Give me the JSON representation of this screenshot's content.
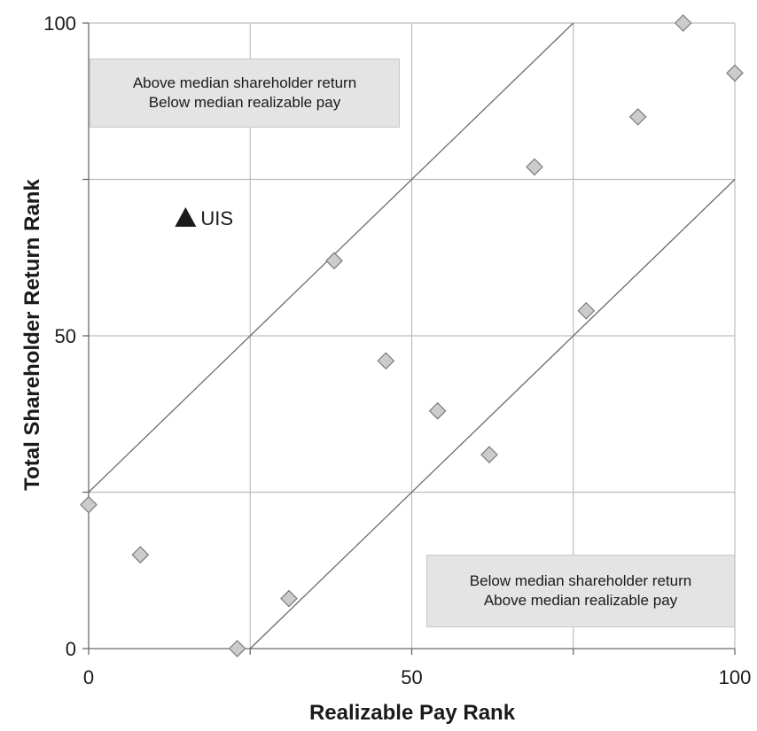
{
  "chart_data": {
    "type": "scatter",
    "title": "",
    "xlabel": "Realizable Pay Rank",
    "ylabel": "Total Shareholder Return Rank",
    "xlim": [
      0,
      100
    ],
    "ylim": [
      0,
      100
    ],
    "x_ticks": [
      "0",
      "50",
      "100"
    ],
    "y_ticks": [
      "0",
      "50",
      "100"
    ],
    "grid": true,
    "grid_lines": [
      25,
      50,
      75
    ],
    "reference_lines": [
      {
        "from": [
          0,
          25
        ],
        "to": [
          75,
          100
        ]
      },
      {
        "from": [
          25,
          0
        ],
        "to": [
          100,
          75
        ]
      }
    ],
    "series": [
      {
        "marker": "diamond",
        "color": "#cccccc",
        "points": [
          {
            "x": 0,
            "y": 23
          },
          {
            "x": 8,
            "y": 15
          },
          {
            "x": 23,
            "y": 0
          },
          {
            "x": 31,
            "y": 8
          },
          {
            "x": 38,
            "y": 62
          },
          {
            "x": 46,
            "y": 46
          },
          {
            "x": 54,
            "y": 38
          },
          {
            "x": 62,
            "y": 31
          },
          {
            "x": 69,
            "y": 77
          },
          {
            "x": 77,
            "y": 54
          },
          {
            "x": 85,
            "y": 85
          },
          {
            "x": 92,
            "y": 100
          },
          {
            "x": 100,
            "y": 92
          }
        ]
      },
      {
        "marker": "triangle",
        "color": "#1a1a1a",
        "points": [
          {
            "x": 15,
            "y": 69,
            "label": "UIS"
          }
        ]
      }
    ],
    "annotations": [
      {
        "id": "top",
        "lines": [
          "Above median shareholder return",
          "Below median realizable pay"
        ]
      },
      {
        "id": "bottom",
        "lines": [
          "Below median shareholder return",
          "Above median realizable pay"
        ]
      }
    ]
  }
}
